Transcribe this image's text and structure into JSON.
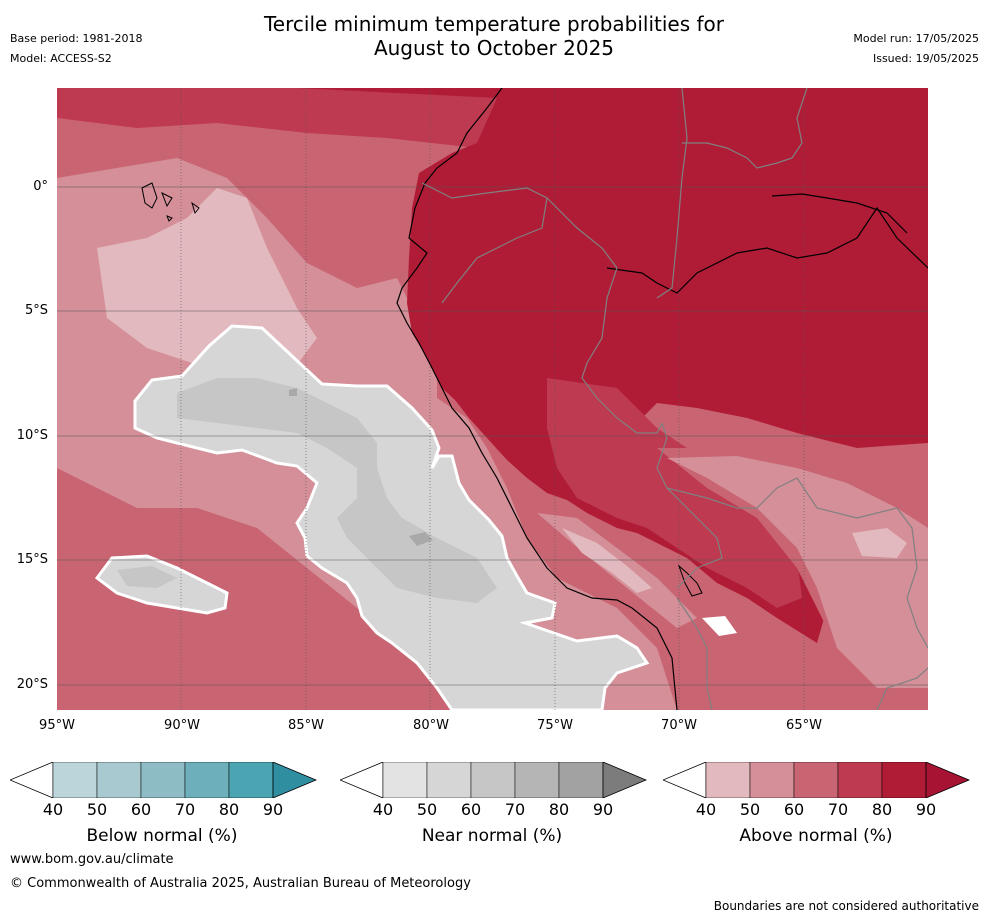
{
  "title": {
    "line1": "Tercile minimum temperature probabilities for",
    "line2": "August to October 2025"
  },
  "meta_left": {
    "base_period": "Base period: 1981-2018",
    "model": "Model: ACCESS-S2"
  },
  "meta_right": {
    "model_run": "Model run: 17/05/2025",
    "issued": "Issued: 19/05/2025"
  },
  "map": {
    "region": "Western South America and eastern Pacific",
    "lat_ticks": [
      "0°",
      "5°S",
      "10°S",
      "15°S",
      "20°S"
    ],
    "lon_ticks": [
      "95°W",
      "90°W",
      "85°W",
      "80°W",
      "75°W",
      "70°W",
      "65°W"
    ],
    "lat_values": [
      0,
      -5,
      -10,
      -15,
      -20
    ],
    "lon_values": [
      -95,
      -90,
      -85,
      -80,
      -75,
      -70,
      -65
    ],
    "lat_range": [
      3.9,
      -21.0
    ],
    "lon_range": [
      -95.0,
      -60.0
    ],
    "dominant_category": "Above normal",
    "colors": {
      "above_90": "#b01c36",
      "above_80": "#be3a50",
      "above_70": "#c96472",
      "above_60": "#d48f98",
      "above_50": "#e2b9be",
      "near_50": "#e3e3e3",
      "near_60": "#d6d6d6",
      "near_70": "#c6c6c6",
      "near_80": "#a9a9a9",
      "coast": "#000000",
      "border": "#808080",
      "near_outline": "#ffffff"
    }
  },
  "legends": [
    {
      "label": "Below normal (%)",
      "ticks": [
        "40",
        "50",
        "60",
        "70",
        "80",
        "90"
      ],
      "colors": [
        "#ffffff",
        "#bcd5db",
        "#a7c9cf",
        "#8ebcc5",
        "#6dafba",
        "#4aa4b2",
        "#2f8e9f"
      ]
    },
    {
      "label": "Near normal (%)",
      "ticks": [
        "40",
        "50",
        "60",
        "70",
        "80",
        "90"
      ],
      "colors": [
        "#ffffff",
        "#e3e3e3",
        "#d6d6d6",
        "#c6c6c6",
        "#b5b5b5",
        "#a2a2a2",
        "#7c7c7c"
      ]
    },
    {
      "label": "Above normal (%)",
      "ticks": [
        "40",
        "50",
        "60",
        "70",
        "80",
        "90"
      ],
      "colors": [
        "#ffffff",
        "#e2b9be",
        "#d48f98",
        "#c96472",
        "#be3a50",
        "#b01c36",
        "#a71433"
      ]
    }
  ],
  "footer": {
    "website": "www.bom.gov.au/climate",
    "copyright": "© Commonwealth of Australia 2025, Australian Bureau of Meteorology",
    "disclaimer": "Boundaries are not considered authoritative"
  }
}
